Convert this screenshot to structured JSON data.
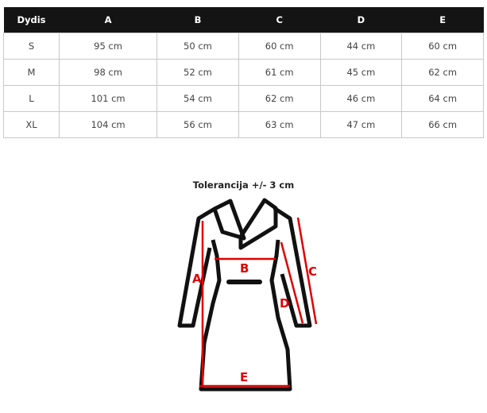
{
  "table": {
    "headers": [
      "Dydis",
      "A",
      "B",
      "C",
      "D",
      "E"
    ],
    "rows": [
      [
        "S",
        "95 cm",
        "50 cm",
        "60 cm",
        "44 cm",
        "60 cm"
      ],
      [
        "M",
        "98 cm",
        "52 cm",
        "61 cm",
        "45 cm",
        "62 cm"
      ],
      [
        "L",
        "101 cm",
        "54 cm",
        "62 cm",
        "46 cm",
        "64 cm"
      ],
      [
        "XL",
        "104 cm",
        "56 cm",
        "63 cm",
        "47 cm",
        "66 cm"
      ]
    ]
  },
  "diagram": {
    "title": "Tolerancija +/- 3 cm",
    "labels": {
      "a": "A",
      "b": "B",
      "c": "C",
      "d": "D",
      "e": "E"
    },
    "measure_color": "#e00000"
  }
}
